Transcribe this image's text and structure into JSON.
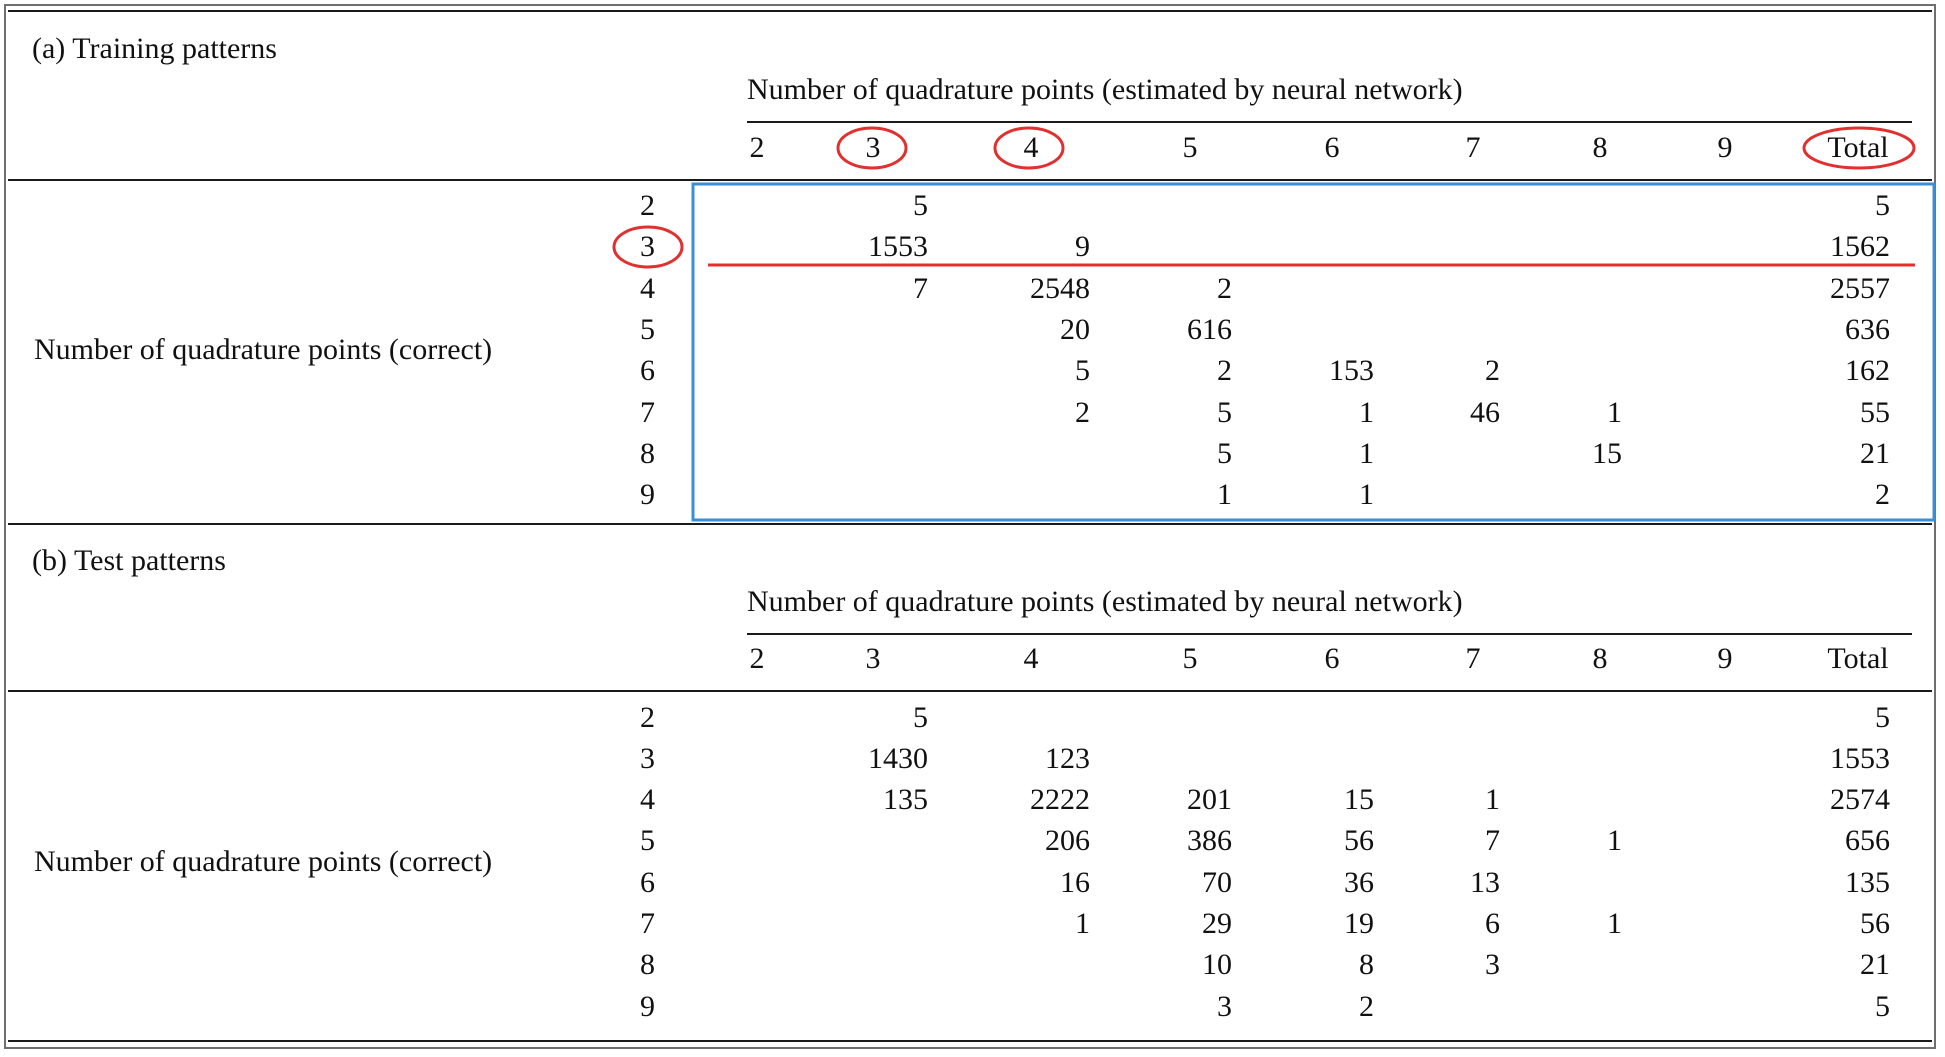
{
  "sections": [
    {
      "title": "(a) Training patterns",
      "col_header": "Number of quadrature points (estimated by neural network)",
      "row_header": "Number of quadrature points (correct)",
      "columns": [
        "2",
        "3",
        "4",
        "5",
        "6",
        "7",
        "8",
        "9",
        "Total"
      ],
      "rows": [
        {
          "label": "2",
          "cells": [
            "",
            "5",
            "",
            "",
            "",
            "",
            "",
            "",
            "5"
          ]
        },
        {
          "label": "3",
          "cells": [
            "",
            "1553",
            "9",
            "",
            "",
            "",
            "",
            "",
            "1562"
          ]
        },
        {
          "label": "4",
          "cells": [
            "",
            "7",
            "2548",
            "2",
            "",
            "",
            "",
            "",
            "2557"
          ]
        },
        {
          "label": "5",
          "cells": [
            "",
            "",
            "20",
            "616",
            "",
            "",
            "",
            "",
            "636"
          ]
        },
        {
          "label": "6",
          "cells": [
            "",
            "",
            "5",
            "2",
            "153",
            "2",
            "",
            "",
            "162"
          ]
        },
        {
          "label": "7",
          "cells": [
            "",
            "",
            "2",
            "5",
            "1",
            "46",
            "1",
            "",
            "55"
          ]
        },
        {
          "label": "8",
          "cells": [
            "",
            "",
            "",
            "5",
            "1",
            "",
            "15",
            "",
            "21"
          ]
        },
        {
          "label": "9",
          "cells": [
            "",
            "",
            "",
            "1",
            "1",
            "",
            "",
            "",
            "2"
          ]
        }
      ]
    },
    {
      "title": "(b) Test patterns",
      "col_header": "Number of quadrature points (estimated by neural network)",
      "row_header": "Number of quadrature points (correct)",
      "columns": [
        "2",
        "3",
        "4",
        "5",
        "6",
        "7",
        "8",
        "9",
        "Total"
      ],
      "rows": [
        {
          "label": "2",
          "cells": [
            "",
            "5",
            "",
            "",
            "",
            "",
            "",
            "",
            "5"
          ]
        },
        {
          "label": "3",
          "cells": [
            "",
            "1430",
            "123",
            "",
            "",
            "",
            "",
            "",
            "1553"
          ]
        },
        {
          "label": "4",
          "cells": [
            "",
            "135",
            "2222",
            "201",
            "15",
            "1",
            "",
            "",
            "2574"
          ]
        },
        {
          "label": "5",
          "cells": [
            "",
            "",
            "206",
            "386",
            "56",
            "7",
            "1",
            "",
            "656"
          ]
        },
        {
          "label": "6",
          "cells": [
            "",
            "",
            "16",
            "70",
            "36",
            "13",
            "",
            "",
            "135"
          ]
        },
        {
          "label": "7",
          "cells": [
            "",
            "",
            "1",
            "29",
            "19",
            "6",
            "1",
            "",
            "56"
          ]
        },
        {
          "label": "8",
          "cells": [
            "",
            "",
            "",
            "10",
            "8",
            "3",
            "",
            "",
            "21"
          ]
        },
        {
          "label": "9",
          "cells": [
            "",
            "",
            "",
            "3",
            "2",
            "",
            "",
            "",
            "5"
          ]
        }
      ]
    }
  ],
  "annotations": {
    "circle_color": "#e03030",
    "line_color": "#e03030",
    "box_color": "#3a8fd6",
    "circled_column_headers": [
      "3",
      "4",
      "Total"
    ],
    "circled_row_label": "3"
  }
}
